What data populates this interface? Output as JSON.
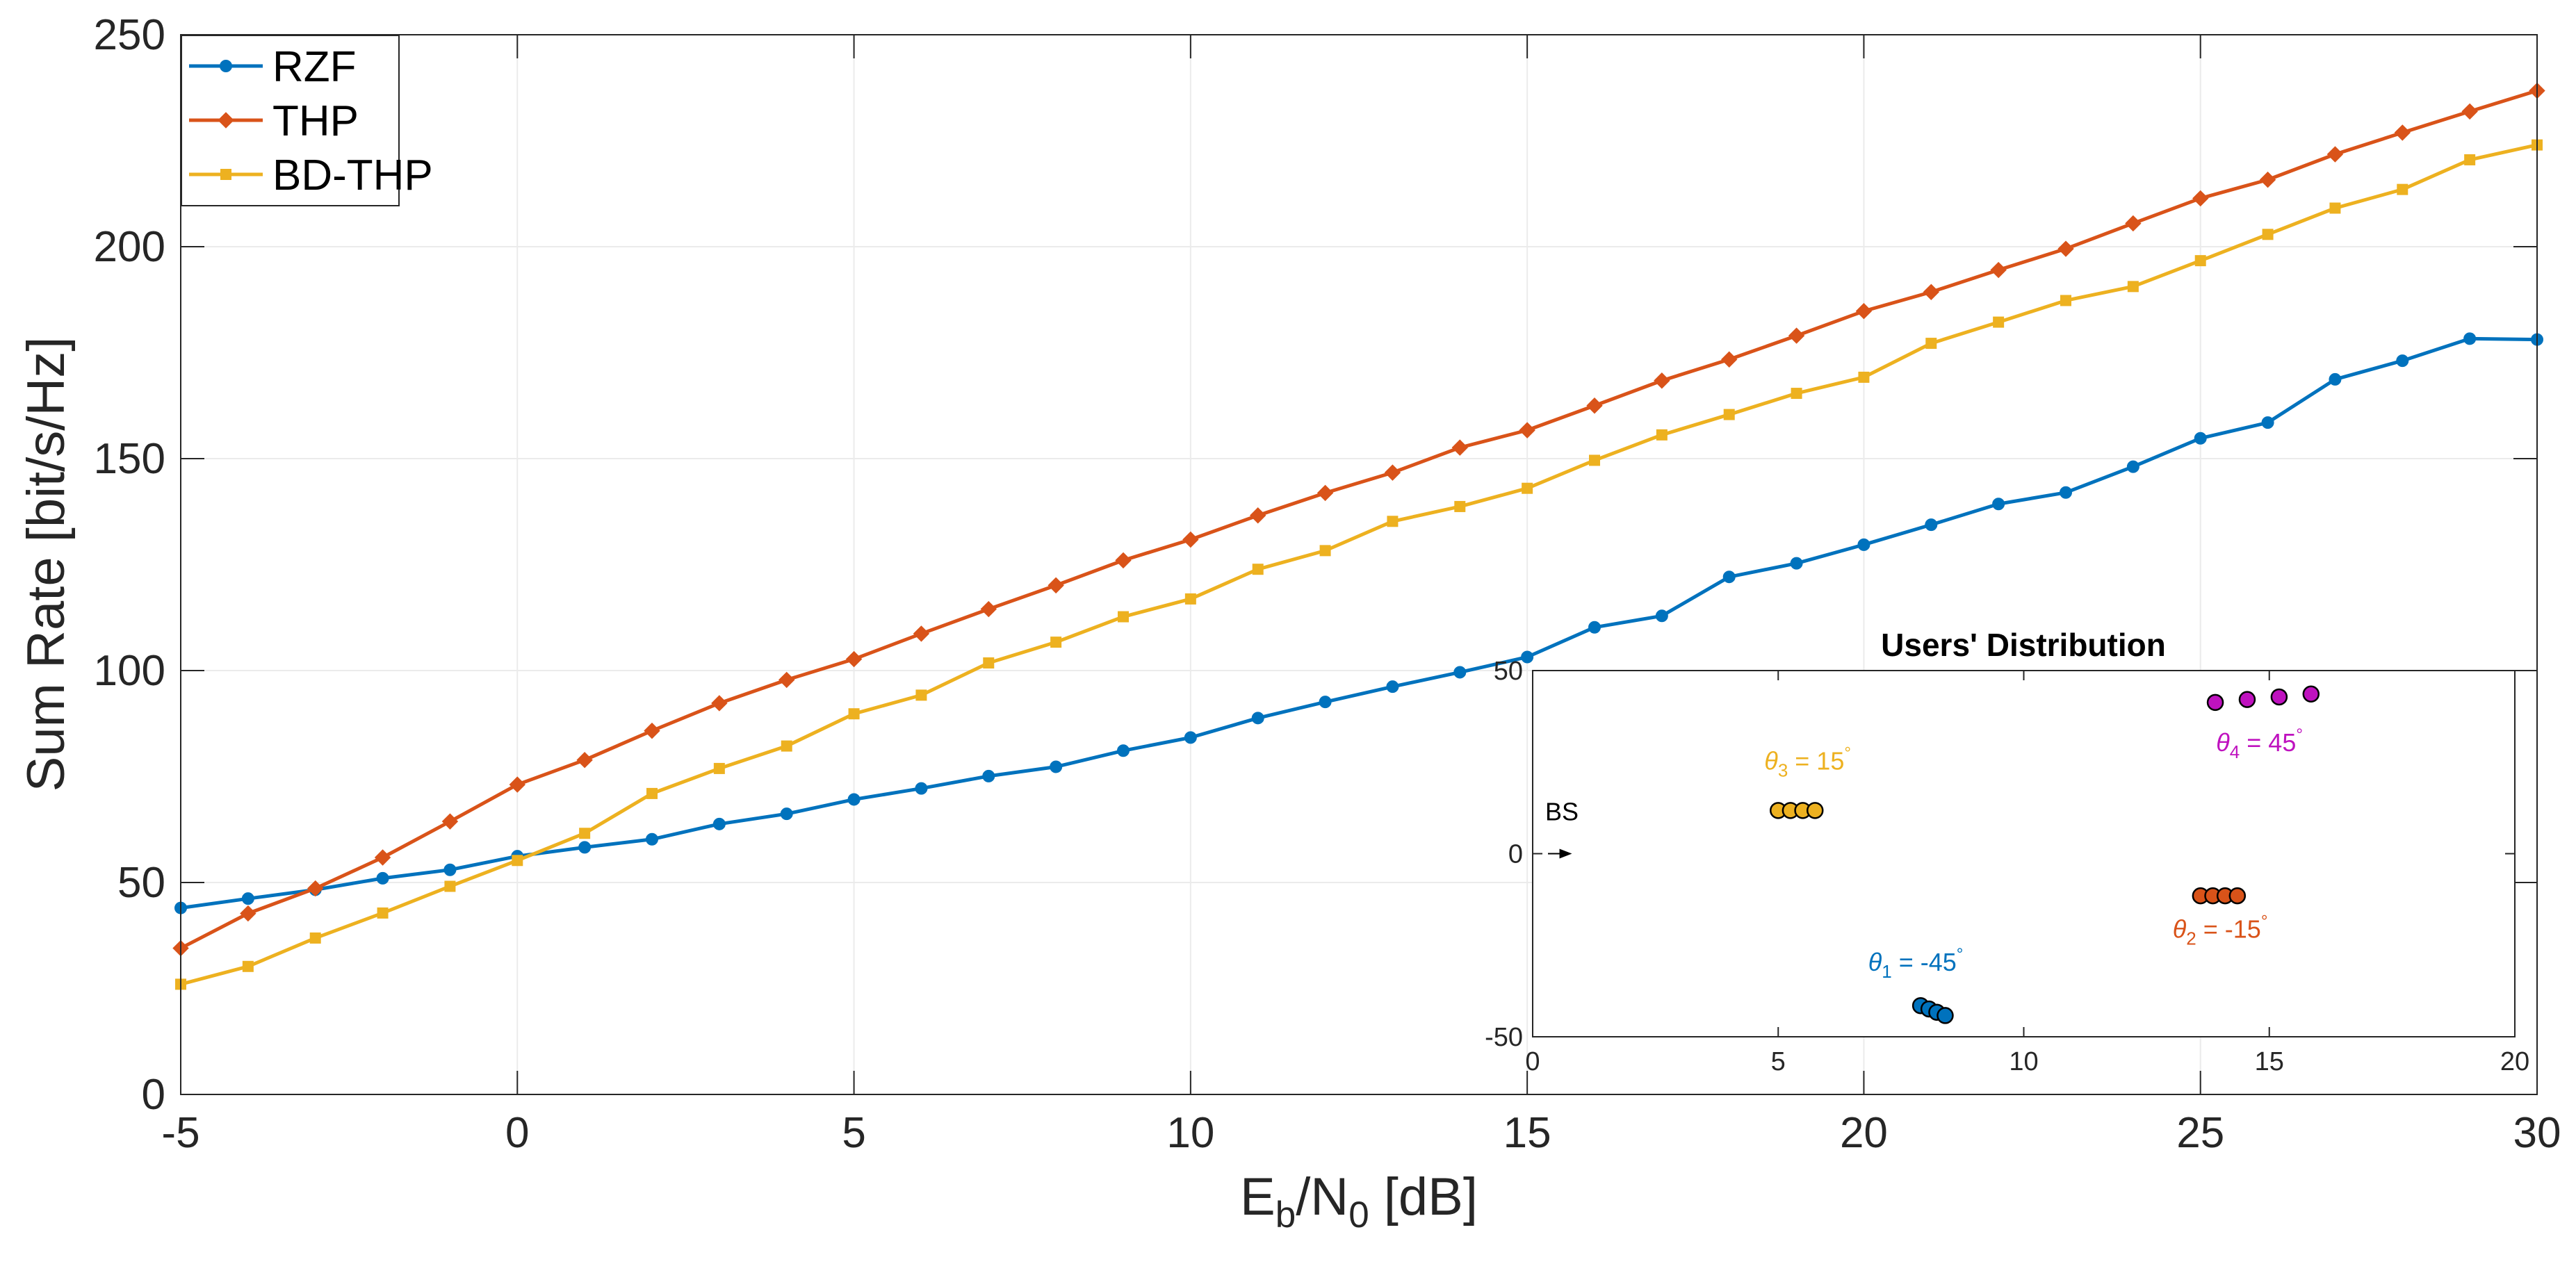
{
  "chart_data": [
    {
      "type": "line",
      "title": "",
      "xlabel_parts": [
        "E",
        "b",
        "/N",
        "0",
        " [dB]"
      ],
      "ylabel": "Sum Rate [bit/s/Hz]",
      "xlim": [
        -5,
        30
      ],
      "ylim": [
        0,
        250
      ],
      "xticks": [
        -5,
        0,
        5,
        10,
        15,
        20,
        25,
        30
      ],
      "yticks": [
        0,
        50,
        100,
        150,
        200,
        250
      ],
      "grid": true,
      "legend_position": "top-left",
      "x": [
        -5,
        -4,
        -3,
        -2,
        -1,
        0,
        1,
        2,
        3,
        4,
        5,
        6,
        7,
        8,
        9,
        10,
        11,
        12,
        13,
        14,
        15,
        16,
        17,
        18,
        19,
        20,
        21,
        22,
        23,
        24,
        25,
        26,
        27,
        28,
        29,
        30
      ],
      "series": [
        {
          "name": "RZF",
          "color": "#0072BD",
          "marker": "circle",
          "values": [
            44.0,
            46.2,
            48.3,
            51.0,
            53.0,
            56.2,
            58.3,
            60.2,
            63.8,
            66.2,
            69.6,
            72.2,
            75.1,
            77.3,
            81.1,
            84.2,
            88.8,
            92.6,
            96.2,
            99.6,
            103.2,
            110.2,
            112.9,
            122.1,
            125.3,
            129.7,
            134.4,
            139.3,
            142.0,
            148.1,
            154.8,
            158.5,
            168.7,
            173.1,
            178.3,
            178.1
          ]
        },
        {
          "name": "THP",
          "color": "#D95319",
          "marker": "diamond",
          "values": [
            34.5,
            42.7,
            48.6,
            55.9,
            64.4,
            73.1,
            78.9,
            85.8,
            92.3,
            97.8,
            102.7,
            108.7,
            114.5,
            120.1,
            126.0,
            130.9,
            136.6,
            141.9,
            146.7,
            152.6,
            156.7,
            162.5,
            168.4,
            173.4,
            179.0,
            184.8,
            189.3,
            194.5,
            199.5,
            205.5,
            211.4,
            215.8,
            221.8,
            226.9,
            231.9,
            236.8
          ]
        },
        {
          "name": "BD-THP",
          "color": "#EDB120",
          "marker": "square",
          "values": [
            26.0,
            30.2,
            36.9,
            42.8,
            49.1,
            55.2,
            61.6,
            71.0,
            76.9,
            82.2,
            89.8,
            94.2,
            101.8,
            106.7,
            112.7,
            116.9,
            123.9,
            128.3,
            135.2,
            138.7,
            143.0,
            149.6,
            155.6,
            160.4,
            165.4,
            169.2,
            177.2,
            182.2,
            187.3,
            190.6,
            196.7,
            202.9,
            209.1,
            213.5,
            220.5,
            224.0
          ]
        }
      ]
    },
    {
      "type": "scatter",
      "title": "Users' Distribution",
      "xlim": [
        0,
        20
      ],
      "ylim": [
        -50,
        50
      ],
      "xticks": [
        0,
        5,
        10,
        15,
        20
      ],
      "yticks": [
        -50,
        0,
        50
      ],
      "grid": false,
      "annotations": {
        "bs_label": "BS",
        "bs_point": [
          0.8,
          0
        ],
        "groups": [
          {
            "name": "user-group-1",
            "theta_sub": "1",
            "label_value": " = -45",
            "degree": "°",
            "color": "#0072BD",
            "label_anchor": [
              7.8,
              -32
            ],
            "points": [
              [
                7.9,
                -41.5
              ],
              [
                8.07,
                -42.4
              ],
              [
                8.23,
                -43.3
              ],
              [
                8.4,
                -44.2
              ]
            ]
          },
          {
            "name": "user-group-2",
            "theta_sub": "2",
            "label_value": " = -15",
            "degree": "°",
            "color": "#D95319",
            "label_anchor": [
              14.0,
              -23
            ],
            "points": [
              [
                13.6,
                -11.5
              ],
              [
                13.85,
                -11.5
              ],
              [
                14.1,
                -11.5
              ],
              [
                14.35,
                -11.5
              ]
            ]
          },
          {
            "name": "user-group-3",
            "theta_sub": "3",
            "label_value": " = 15",
            "degree": "°",
            "color": "#EDB120",
            "label_anchor": [
              5.6,
              23
            ],
            "points": [
              [
                5.0,
                11.8
              ],
              [
                5.25,
                11.8
              ],
              [
                5.5,
                11.8
              ],
              [
                5.75,
                11.8
              ]
            ]
          },
          {
            "name": "user-group-4",
            "theta_sub": "4",
            "label_value": " = 45",
            "degree": "°",
            "color": "#BF12BF",
            "label_anchor": [
              14.8,
              28
            ],
            "points": [
              [
                13.9,
                41.3
              ],
              [
                14.55,
                42.1
              ],
              [
                15.2,
                42.8
              ],
              [
                15.85,
                43.6
              ]
            ]
          }
        ]
      }
    }
  ]
}
